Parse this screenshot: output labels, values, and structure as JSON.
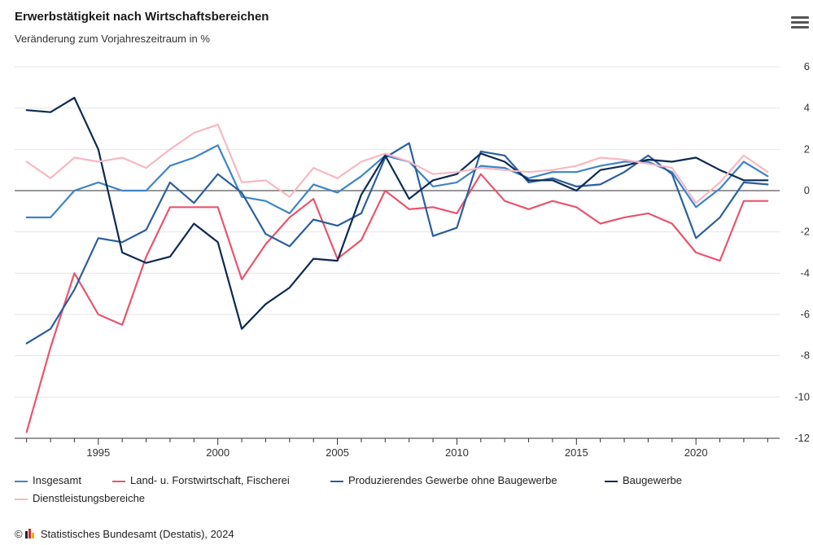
{
  "header": {
    "title": "Erwerbstätigkeit nach Wirtschaftsbereichen",
    "subtitle": "Veränderung zum Vorjahreszeitraum in %"
  },
  "menu_icon": "hamburger-menu-icon",
  "footer": {
    "copyright_symbol": "©",
    "text": "Statistisches Bundesamt (Destatis), 2024"
  },
  "chart_data": {
    "type": "line",
    "title": "Erwerbstätigkeit nach Wirtschaftsbereichen",
    "subtitle": "Veränderung zum Vorjahreszeitraum in %",
    "x": [
      1992,
      1993,
      1994,
      1995,
      1996,
      1997,
      1998,
      1999,
      2000,
      2001,
      2002,
      2003,
      2004,
      2005,
      2006,
      2007,
      2008,
      2009,
      2010,
      2011,
      2012,
      2013,
      2014,
      2015,
      2016,
      2017,
      2018,
      2019,
      2020,
      2021,
      2022,
      2023
    ],
    "x_ticks": [
      "1995",
      "2000",
      "2005",
      "2010",
      "2015",
      "2020"
    ],
    "y_ticks": [
      "6",
      "4",
      "2",
      "0",
      "-2",
      "-4",
      "-6",
      "-8",
      "-10",
      "-12"
    ],
    "ylim": [
      -12,
      6
    ],
    "xlim": [
      1991.5,
      2023.5
    ],
    "y_axis_position": "right",
    "grid": true,
    "zero_line": true,
    "legend_position": "bottom",
    "series": [
      {
        "name": "Insgesamt",
        "color": "#3f84c6",
        "values": [
          -1.3,
          -1.3,
          0.0,
          0.4,
          0.0,
          0.0,
          1.2,
          1.6,
          2.2,
          -0.3,
          -0.5,
          -1.1,
          0.3,
          -0.1,
          0.7,
          1.7,
          1.4,
          0.2,
          0.4,
          1.2,
          1.1,
          0.6,
          0.9,
          0.9,
          1.2,
          1.4,
          1.4,
          0.9,
          -0.8,
          0.1,
          1.4,
          0.7
        ]
      },
      {
        "name": "Land- u. Forstwirtschaft, Fischerei",
        "color": "#e8556d",
        "values": [
          -11.7,
          -7.6,
          -4.0,
          -6.0,
          -6.5,
          -3.2,
          -0.8,
          -0.8,
          -0.8,
          -4.3,
          -2.6,
          -1.3,
          -0.4,
          -3.3,
          -2.4,
          0.0,
          -0.9,
          -0.8,
          -1.1,
          0.8,
          -0.5,
          -0.9,
          -0.5,
          -0.8,
          -1.6,
          -1.3,
          -1.1,
          -1.6,
          -3.0,
          -3.4,
          -0.5,
          -0.5
        ]
      },
      {
        "name": "Produzierendes Gewerbe ohne Baugewerbe",
        "color": "#2b5f9e",
        "values": [
          -7.4,
          -6.7,
          -4.8,
          -2.3,
          -2.5,
          -1.9,
          0.4,
          -0.6,
          0.8,
          -0.1,
          -2.1,
          -2.7,
          -1.4,
          -1.7,
          -1.1,
          1.6,
          2.3,
          -2.2,
          -1.8,
          1.9,
          1.7,
          0.4,
          0.6,
          0.2,
          0.3,
          0.9,
          1.7,
          0.8,
          -2.3,
          -1.3,
          0.4,
          0.3
        ]
      },
      {
        "name": "Baugewerbe",
        "color": "#0d2a52",
        "values": [
          3.9,
          3.8,
          4.5,
          2.0,
          -3.0,
          -3.5,
          -3.2,
          -1.6,
          -2.5,
          -6.7,
          -5.5,
          -4.7,
          -3.3,
          -3.4,
          -0.2,
          1.7,
          -0.4,
          0.5,
          0.8,
          1.8,
          1.4,
          0.5,
          0.5,
          0.0,
          1.0,
          1.2,
          1.5,
          1.4,
          1.6,
          1.0,
          0.5,
          0.5
        ]
      },
      {
        "name": "Dienstleistungsbereiche",
        "color": "#f7b8c3",
        "values": [
          1.4,
          0.6,
          1.6,
          1.4,
          1.6,
          1.1,
          2.0,
          2.8,
          3.2,
          0.4,
          0.5,
          -0.3,
          1.1,
          0.6,
          1.4,
          1.8,
          1.4,
          0.8,
          0.9,
          1.1,
          1.0,
          0.9,
          1.0,
          1.2,
          1.6,
          1.5,
          1.3,
          1.1,
          -0.6,
          0.4,
          1.7,
          0.9
        ]
      }
    ]
  }
}
